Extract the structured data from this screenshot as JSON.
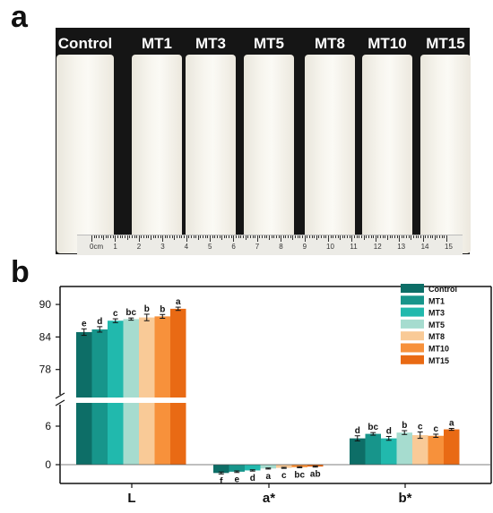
{
  "panel_a": {
    "letter": "a",
    "sample_labels": [
      "Control",
      "MT1",
      "MT3",
      "MT5",
      "MT8",
      "MT10",
      "MT15"
    ],
    "ruler_labels": [
      "0cm",
      "1",
      "2",
      "3",
      "4",
      "5",
      "6",
      "7",
      "8",
      "9",
      "10",
      "11",
      "12",
      "13",
      "14",
      "15"
    ]
  },
  "panel_b": {
    "letter": "b"
  },
  "chart_data": {
    "type": "bar",
    "categories": [
      "L",
      "a*",
      "b*"
    ],
    "series": [
      {
        "name": "Control",
        "color": "#0d6e67",
        "values": [
          84.9,
          -1.3,
          4.1
        ],
        "errors": [
          0.6,
          0.15,
          0.4
        ],
        "letters": [
          "e",
          "f",
          "d"
        ]
      },
      {
        "name": "MT1",
        "color": "#17958b",
        "values": [
          85.4,
          -1.1,
          4.8
        ],
        "errors": [
          0.5,
          0.12,
          0.2
        ],
        "letters": [
          "d",
          "e",
          "bc"
        ]
      },
      {
        "name": "MT3",
        "color": "#21b9ad",
        "values": [
          87.0,
          -0.9,
          4.1
        ],
        "errors": [
          0.35,
          0.1,
          0.3
        ],
        "letters": [
          "c",
          "d",
          "d"
        ]
      },
      {
        "name": "MT5",
        "color": "#a6dccf",
        "values": [
          87.3,
          -0.6,
          5.0
        ],
        "errors": [
          0.2,
          0.08,
          0.3
        ],
        "letters": [
          "bc",
          "a",
          "b"
        ]
      },
      {
        "name": "MT8",
        "color": "#f9ca97",
        "values": [
          87.6,
          -0.5,
          4.6
        ],
        "errors": [
          0.6,
          0.08,
          0.5
        ],
        "letters": [
          "b",
          "c",
          "c"
        ]
      },
      {
        "name": "MT10",
        "color": "#f7913b",
        "values": [
          87.8,
          -0.4,
          4.5
        ],
        "errors": [
          0.35,
          0.08,
          0.25
        ],
        "letters": [
          "b",
          "bc",
          "c"
        ]
      },
      {
        "name": "MT15",
        "color": "#e96a14",
        "values": [
          89.2,
          -0.3,
          5.5
        ],
        "errors": [
          0.3,
          0.08,
          0.15
        ],
        "letters": [
          "a",
          "ab",
          "a"
        ]
      }
    ],
    "y_ticks": [
      0,
      6,
      78,
      84,
      90
    ],
    "y_break": true,
    "legend_position": "top-right"
  }
}
